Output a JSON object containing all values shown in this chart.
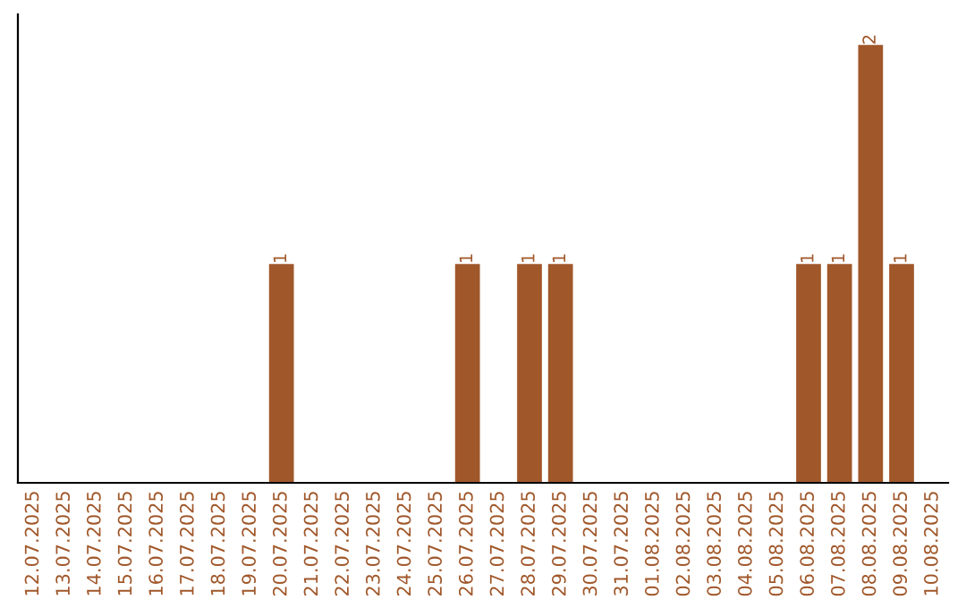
{
  "chart_data": {
    "type": "bar",
    "categories": [
      "12.07.2025",
      "13.07.2025",
      "14.07.2025",
      "15.07.2025",
      "16.07.2025",
      "17.07.2025",
      "18.07.2025",
      "19.07.2025",
      "20.07.2025",
      "21.07.2025",
      "22.07.2025",
      "23.07.2025",
      "24.07.2025",
      "25.07.2025",
      "26.07.2025",
      "27.07.2025",
      "28.07.2025",
      "29.07.2025",
      "30.07.2025",
      "31.07.2025",
      "01.08.2025",
      "02.08.2025",
      "03.08.2025",
      "04.08.2025",
      "05.08.2025",
      "06.08.2025",
      "07.08.2025",
      "08.08.2025",
      "09.08.2025",
      "10.08.2025"
    ],
    "values": [
      0,
      0,
      0,
      0,
      0,
      0,
      0,
      0,
      1,
      0,
      0,
      0,
      0,
      0,
      1,
      0,
      1,
      1,
      0,
      0,
      0,
      0,
      0,
      0,
      0,
      1,
      1,
      2,
      1,
      0
    ],
    "value_labels": [
      null,
      null,
      null,
      null,
      null,
      null,
      null,
      null,
      "1",
      null,
      null,
      null,
      null,
      null,
      "1",
      null,
      "1",
      "1",
      null,
      null,
      null,
      null,
      null,
      null,
      null,
      "1",
      "1",
      "2",
      "1",
      null
    ],
    "color": "#a0572a",
    "grid": false
  }
}
